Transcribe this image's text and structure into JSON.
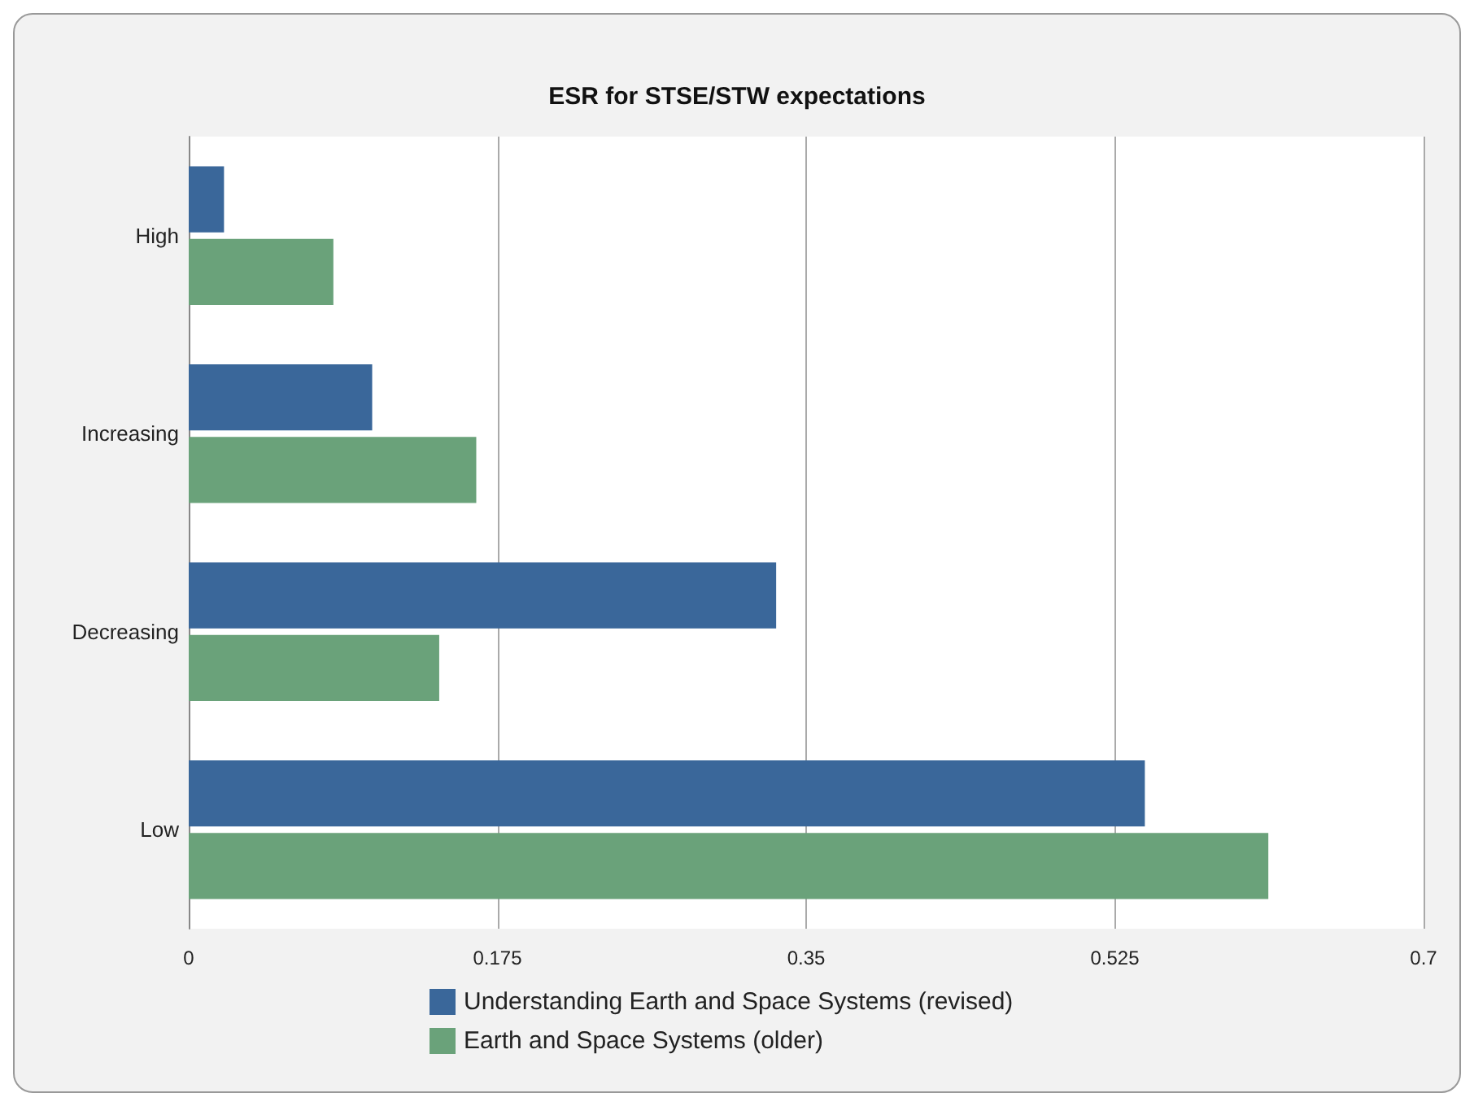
{
  "chart_data": {
    "type": "bar",
    "orientation": "horizontal",
    "title": "ESR for STSE/STW expectations",
    "categories": [
      "High",
      "Increasing",
      "Decreasing",
      "Low"
    ],
    "series": [
      {
        "name": "Understanding Earth and Space Systems (revised)",
        "color": "#3a679a",
        "values": [
          0.02,
          0.104,
          0.333,
          0.542
        ]
      },
      {
        "name": "Earth and Space Systems (older)",
        "color": "#6aa27a",
        "values": [
          0.082,
          0.163,
          0.142,
          0.612
        ]
      }
    ],
    "xlim": [
      0,
      0.7
    ],
    "xticks": [
      0,
      0.175,
      0.35,
      0.525,
      0.7
    ],
    "grid": "x",
    "legend": "bottom"
  }
}
